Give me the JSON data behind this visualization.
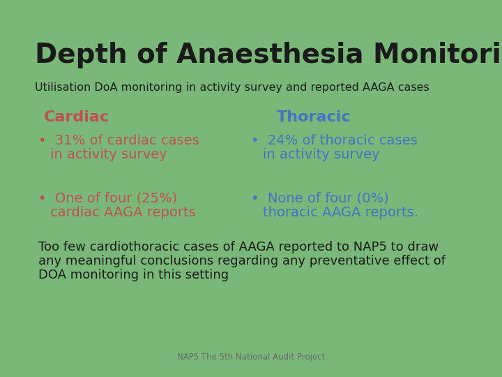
{
  "background_color": "#7ab87a",
  "title": "Depth of Anaesthesia Monitoring",
  "title_color": "#1a1a1a",
  "title_fontsize": 28,
  "subtitle": "Utilisation DoA monitoring in activity survey and reported AAGA cases",
  "subtitle_color": "#1a1a1a",
  "subtitle_fontsize": 11.5,
  "cardiac_header": "Cardiac",
  "cardiac_header_color": "#c0504d",
  "thoracic_header": "Thoracic",
  "thoracic_header_color": "#4472c4",
  "cardiac_bullet1_line1": "31% of cardiac cases",
  "cardiac_bullet1_line2": "in activity survey",
  "cardiac_bullet2_line1": "One of four (25%)",
  "cardiac_bullet2_line2": "cardiac AAGA reports",
  "cardiac_bullet_color": "#c0504d",
  "thoracic_bullet1_line1": "24% of thoracic cases",
  "thoracic_bullet1_line2": "in activity survey",
  "thoracic_bullet2_line1": "None of four (0%)",
  "thoracic_bullet2_line2": "thoracic AAGA reports.",
  "thoracic_bullet_color": "#4472c4",
  "bullet_fontsize": 14,
  "header_fontsize": 16,
  "summary_line1": "Too few cardiothoracic cases of AAGA reported to NAP5 to draw",
  "summary_line2": "any meaningful conclusions regarding any preventative effect of",
  "summary_line3": "DOA monitoring in this setting",
  "summary_color": "#1a1a1a",
  "summary_fontsize": 13,
  "footer_text": "NAP5 The 5th National Audit Project",
  "footer_color": "#666666",
  "footer_fontsize": 8.5
}
